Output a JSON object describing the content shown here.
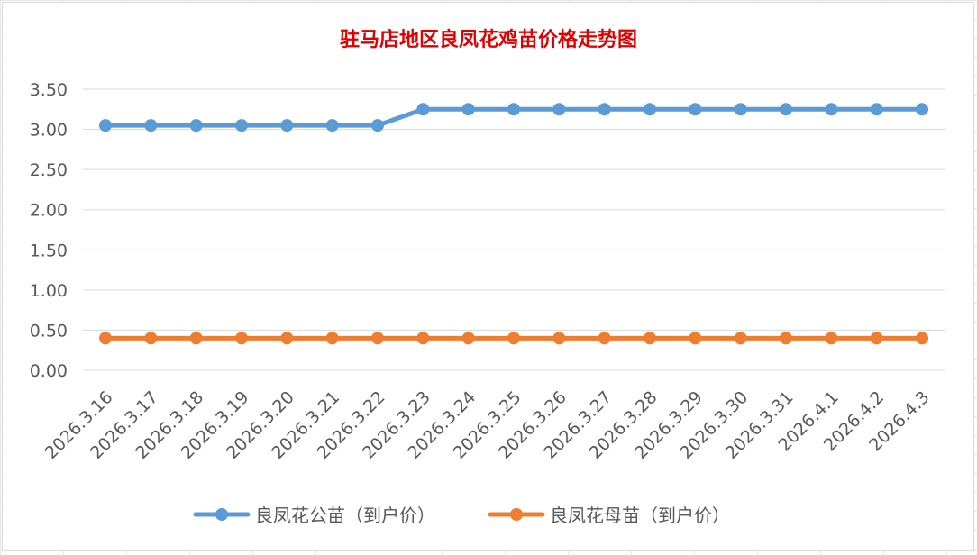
{
  "chart_data": {
    "type": "line",
    "title": "驻马店地区良凤花鸡苗价格走势图",
    "xlabel": "",
    "ylabel": "",
    "categories": [
      "2026.3.16",
      "2026.3.17",
      "2026.3.18",
      "2026.3.19",
      "2026.3.20",
      "2026.3.21",
      "2026.3.22",
      "2026.3.23",
      "2026.3.24",
      "2026.3.25",
      "2026.3.26",
      "2026.3.27",
      "2026.3.28",
      "2026.3.29",
      "2026.3.30",
      "2026.3.31",
      "2026.4.1",
      "2026.4.2",
      "2026.4.3"
    ],
    "series": [
      {
        "name": "良凤花公苗（到户价）",
        "color": "#5b9bd5",
        "values": [
          3.05,
          3.05,
          3.05,
          3.05,
          3.05,
          3.05,
          3.05,
          3.25,
          3.25,
          3.25,
          3.25,
          3.25,
          3.25,
          3.25,
          3.25,
          3.25,
          3.25,
          3.25,
          3.25
        ]
      },
      {
        "name": "良凤花母苗（到户价）",
        "color": "#ed7d31",
        "values": [
          0.4,
          0.4,
          0.4,
          0.4,
          0.4,
          0.4,
          0.4,
          0.4,
          0.4,
          0.4,
          0.4,
          0.4,
          0.4,
          0.4,
          0.4,
          0.4,
          0.4,
          0.4,
          0.4
        ]
      }
    ],
    "y_ticks": [
      "0.00",
      "0.50",
      "1.00",
      "1.50",
      "2.00",
      "2.50",
      "3.00",
      "3.50"
    ],
    "ylim": [
      0,
      3.5
    ],
    "grid": true,
    "legend_position": "bottom"
  }
}
